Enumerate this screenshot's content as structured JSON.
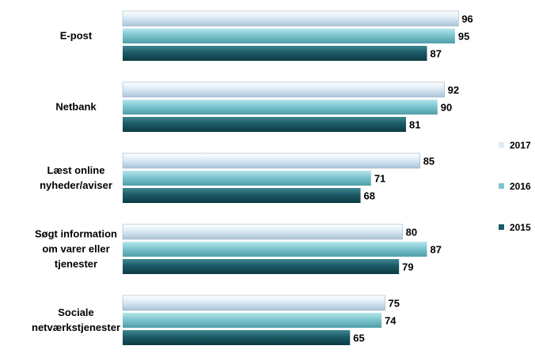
{
  "chart_data": {
    "type": "bar",
    "orientation": "horizontal",
    "categories": [
      [
        "E-post"
      ],
      [
        "Netbank"
      ],
      [
        "Læst online",
        "nyheder/aviser"
      ],
      [
        "Søgt information",
        "om varer eller",
        "tjenester"
      ],
      [
        "Sociale",
        "netværkstjenester"
      ]
    ],
    "series": [
      {
        "name": "2017",
        "color": "#dbeaf5",
        "values": [
          96,
          92,
          85,
          80,
          75
        ]
      },
      {
        "name": "2016",
        "color": "#7dc5cf",
        "values": [
          95,
          90,
          71,
          87,
          74
        ]
      },
      {
        "name": "2015",
        "color": "#1c5b67",
        "values": [
          87,
          81,
          68,
          79,
          65
        ]
      }
    ],
    "xlim": [
      0,
      100
    ],
    "grid": false,
    "legend_position": "right",
    "data_labels": true
  }
}
